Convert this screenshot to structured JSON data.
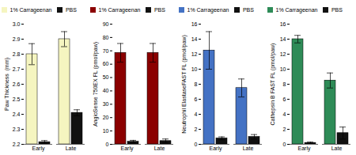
{
  "chart_data": [
    {
      "type": "bar",
      "ylabel": "Paw Thickness  (mm)",
      "categories": [
        "Early",
        "Late"
      ],
      "series": [
        {
          "name": "1% Carrageenan",
          "color": "#f5f5c0",
          "values": [
            2.8,
            2.9
          ],
          "errors": [
            0.07,
            0.05
          ]
        },
        {
          "name": "PBS",
          "color": "#111111",
          "values": [
            2.215,
            2.41
          ],
          "errors": [
            0.01,
            0.02
          ]
        }
      ],
      "ylim": [
        2.2,
        3.0
      ],
      "yticks": [
        2.2,
        2.3,
        2.4,
        2.5,
        2.6,
        2.7,
        2.8,
        2.9,
        {
          "value": 3.0,
          "label": "3.0"
        }
      ],
      "legend": "upper left"
    },
    {
      "type": "bar",
      "ylabel": "AngioSense 750EX FL (pmol/paw)",
      "categories": [
        "Early",
        "Late"
      ],
      "series": [
        {
          "name": "1% Carrageenan",
          "color": "#8b0000",
          "values": [
            68.5,
            68.5
          ],
          "errors": [
            7.0,
            7.0
          ]
        },
        {
          "name": "PBS",
          "color": "#111111",
          "values": [
            2.0,
            2.5
          ],
          "errors": [
            1.0,
            1.5
          ]
        }
      ],
      "ylim": [
        0,
        90
      ],
      "yticks": [
        0,
        10,
        20,
        30,
        40,
        50,
        60,
        70,
        80,
        90
      ],
      "legend": "upper left"
    },
    {
      "type": "bar",
      "ylabel": "Neutrophil ElastaseFAST FL (pmol/paw)",
      "categories": [
        "Early",
        "Late"
      ],
      "series": [
        {
          "name": "1% Carrageenan",
          "color": "#4472c4",
          "values": [
            12.5,
            7.5
          ],
          "errors": [
            2.5,
            1.2
          ]
        },
        {
          "name": "PBS",
          "color": "#111111",
          "values": [
            0.8,
            1.0
          ],
          "errors": [
            0.2,
            0.3
          ]
        }
      ],
      "ylim": [
        0,
        16
      ],
      "yticks": [
        0,
        2,
        4,
        6,
        8,
        10,
        12,
        14,
        16
      ],
      "legend": "upper left"
    },
    {
      "type": "bar",
      "ylabel": "Cathepsin B FAST FL (pmol/paw)",
      "categories": [
        "Early",
        "Late"
      ],
      "series": [
        {
          "name": "1% Carrageenan",
          "color": "#2e8b57",
          "values": [
            14.0,
            8.5
          ],
          "errors": [
            0.5,
            1.0
          ]
        },
        {
          "name": "PBS",
          "color": "#111111",
          "values": [
            0.2,
            1.5
          ],
          "errors": [
            0.1,
            0.8
          ]
        }
      ],
      "ylim": [
        0,
        16
      ],
      "yticks": [
        0,
        2,
        4,
        6,
        8,
        10,
        12,
        14,
        16
      ],
      "legend": "upper left"
    }
  ]
}
